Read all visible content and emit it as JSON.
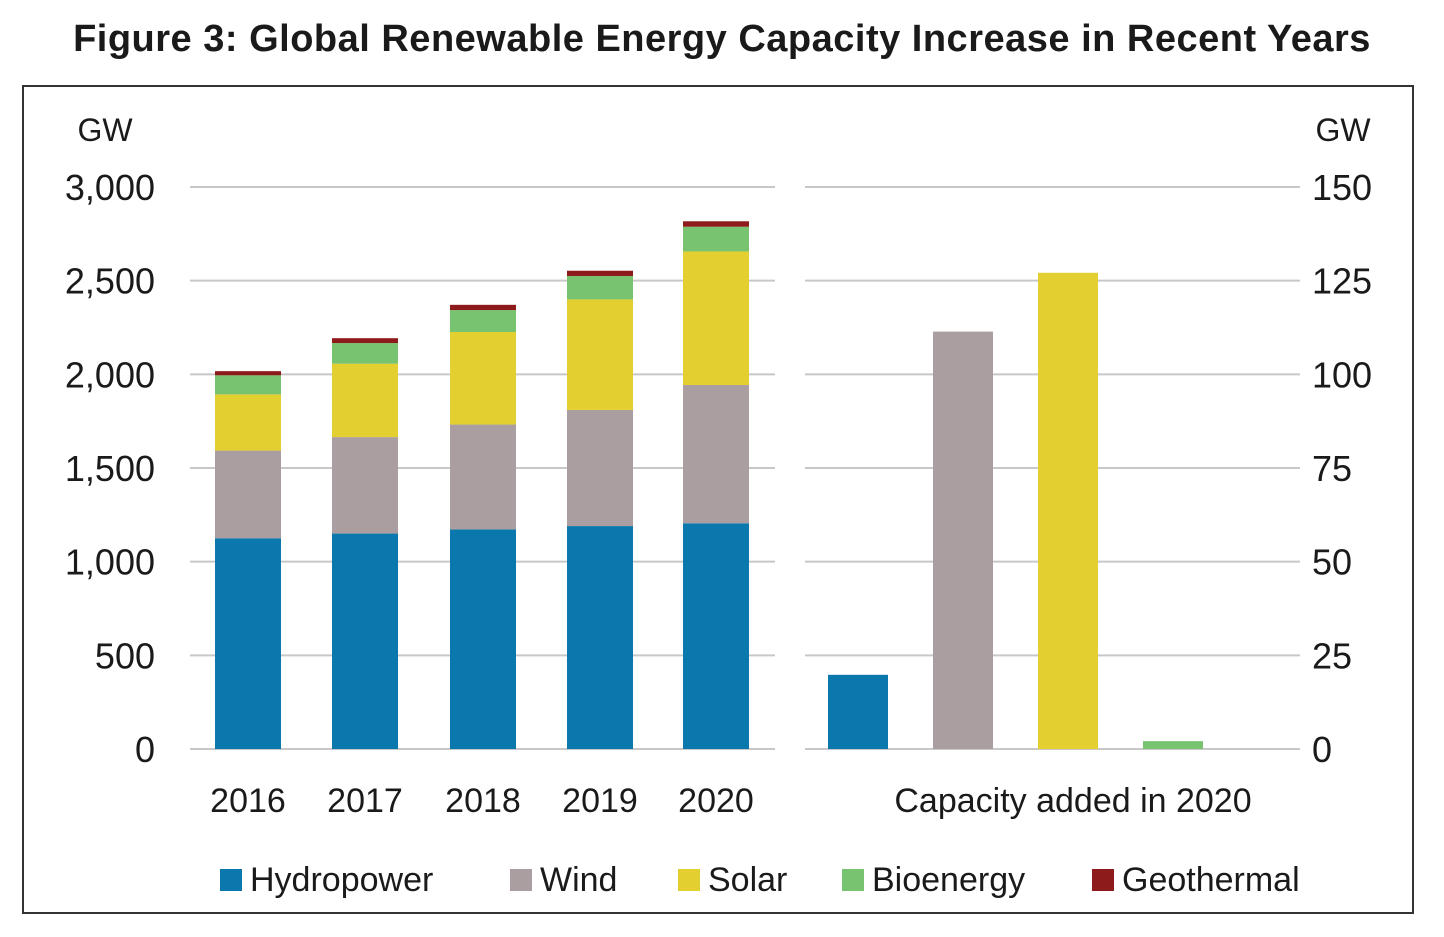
{
  "title": "Figure 3: Global Renewable Energy Capacity Increase in Recent Years",
  "colors": {
    "Hydropower": "#0b78ad",
    "Wind": "#aa9ea0",
    "Solar": "#e3cf2f",
    "Bioenergy": "#78c36f",
    "Geothermal": "#8e1b1c",
    "grid": "#c8c8c8"
  },
  "legend": [
    "Hydropower",
    "Wind",
    "Solar",
    "Bioenergy",
    "Geothermal"
  ],
  "chart_data": [
    {
      "type": "bar",
      "stacked": true,
      "categories": [
        "2016",
        "2017",
        "2018",
        "2019",
        "2020"
      ],
      "series": [
        {
          "name": "Hydropower",
          "values": [
            1125,
            1150,
            1172,
            1190,
            1205
          ]
        },
        {
          "name": "Wind",
          "values": [
            468,
            515,
            560,
            620,
            738
          ]
        },
        {
          "name": "Solar",
          "values": [
            300,
            392,
            494,
            590,
            713
          ]
        },
        {
          "name": "Bioenergy",
          "values": [
            102,
            110,
            117,
            125,
            132
          ]
        },
        {
          "name": "Geothermal",
          "values": [
            22,
            26,
            28,
            28,
            29
          ]
        }
      ],
      "ylabel": "GW",
      "ylim": [
        0,
        3000
      ],
      "yticks": [
        "0",
        "500",
        "1,000",
        "1,500",
        "2,000",
        "2,500",
        "3,000"
      ],
      "grid": true
    },
    {
      "type": "bar",
      "categories": [
        "Hydropower",
        "Wind",
        "Solar",
        "Bioenergy"
      ],
      "values": [
        19.8,
        111.4,
        127.1,
        2.1
      ],
      "xlabel": "Capacity  added in 2020",
      "ylabel": "GW",
      "ylim": [
        0,
        150
      ],
      "yticks": [
        "0",
        "25",
        "50",
        "75",
        "100",
        "125",
        "150"
      ],
      "axis_side": "right",
      "grid": true
    }
  ]
}
